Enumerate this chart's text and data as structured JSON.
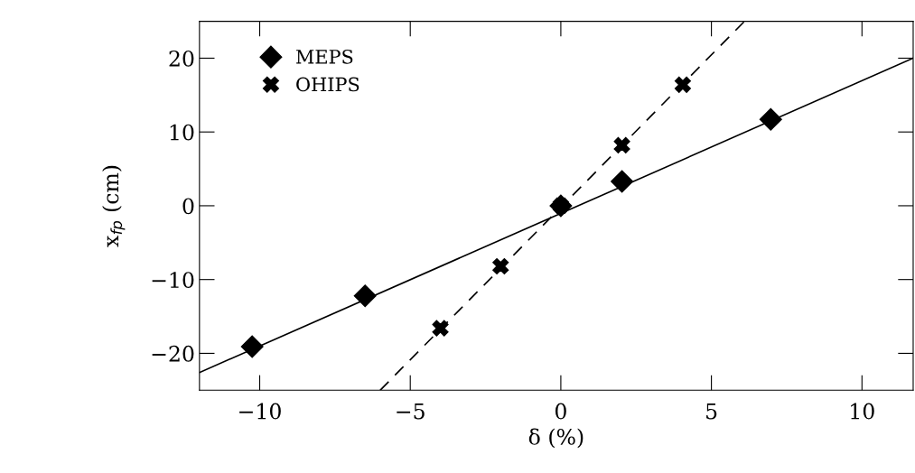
{
  "chart_data": {
    "type": "scatter",
    "xlabel": "δ (%)",
    "ylabel": "x$_{fp}$ (cm)",
    "xlim": [
      -12,
      11.7
    ],
    "ylim": [
      -25,
      25
    ],
    "xticks": [
      -10,
      -5,
      0,
      5,
      10
    ],
    "yticks": [
      -20,
      -10,
      0,
      10,
      20
    ],
    "grid": false,
    "legend": "top left",
    "series": [
      {
        "name": "MEPS",
        "color": "#000000",
        "marker": "diamond",
        "x": [
          -10.25,
          -6.5,
          0,
          2.03,
          6.97
        ],
        "values": [
          -19.1,
          -12.2,
          0,
          3.3,
          11.7
        ]
      },
      {
        "name": "OHIPS",
        "color": "#000000",
        "marker": "cross",
        "x": [
          -4.0,
          -2.0,
          0,
          2.03,
          4.05
        ],
        "values": [
          -16.6,
          -8.2,
          0,
          8.2,
          16.4
        ]
      },
      {
        "type": "line",
        "color": "#000000",
        "line_style": "solid",
        "marker": "none",
        "x": [
          -12,
          11.7
        ],
        "values": [
          -22.6,
          20
        ]
      },
      {
        "type": "line",
        "color": "#000000",
        "line_style": "dashed",
        "marker": "none",
        "x": [
          -6.0,
          6.1
        ],
        "values": [
          -25,
          25
        ]
      }
    ]
  }
}
